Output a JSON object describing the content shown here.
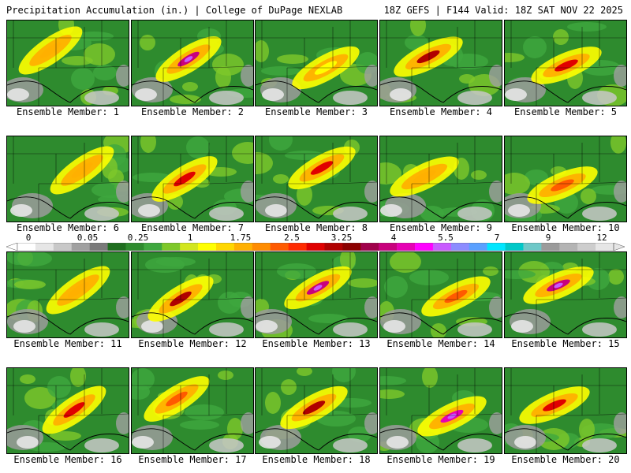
{
  "header": {
    "left_title": "Precipitation Accumulation (in.) | College of DuPage NEXLAB",
    "right_title": "18Z GEFS | F144 Valid: 18Z SAT NOV 22 2025"
  },
  "label_prefix": "Ensemble Member: ",
  "members": [
    {
      "label": "Ensemble Member: 1",
      "max_in": 1.75
    },
    {
      "label": "Ensemble Member: 2",
      "max_in": 5.5
    },
    {
      "label": "Ensemble Member: 3",
      "max_in": 1
    },
    {
      "label": "Ensemble Member: 4",
      "max_in": 4
    },
    {
      "label": "Ensemble Member: 5",
      "max_in": 3.25
    },
    {
      "label": "Ensemble Member: 6",
      "max_in": 1.75
    },
    {
      "label": "Ensemble Member: 7",
      "max_in": 3.25
    },
    {
      "label": "Ensemble Member: 8",
      "max_in": 3.25
    },
    {
      "label": "Ensemble Member: 9",
      "max_in": 1.75
    },
    {
      "label": "Ensemble Member: 10",
      "max_in": 2.5
    },
    {
      "label": "Ensemble Member: 11",
      "max_in": 1.75
    },
    {
      "label": "Ensemble Member: 12",
      "max_in": 4
    },
    {
      "label": "Ensemble Member: 13",
      "max_in": 5.5
    },
    {
      "label": "Ensemble Member: 14",
      "max_in": 2.5
    },
    {
      "label": "Ensemble Member: 15",
      "max_in": 5.5
    },
    {
      "label": "Ensemble Member: 16",
      "max_in": 3.25
    },
    {
      "label": "Ensemble Member: 17",
      "max_in": 2.5
    },
    {
      "label": "Ensemble Member: 18",
      "max_in": 4
    },
    {
      "label": "Ensemble Member: 19",
      "max_in": 7
    },
    {
      "label": "Ensemble Member: 20",
      "max_in": 3.25
    }
  ],
  "colorbar": {
    "tick_labels": [
      "0",
      "0.05",
      "0.25",
      "1",
      "1.75",
      "2.5",
      "3.25",
      "4",
      "5.5",
      "7",
      "9",
      "12"
    ],
    "colors": [
      "#ffffff",
      "#e6e6e6",
      "#c8c8c8",
      "#a0a0a0",
      "#7a7a7a",
      "#1f6e1f",
      "#2e8b2e",
      "#3fa83f",
      "#7ec82a",
      "#d2e61e",
      "#ffff00",
      "#ffd700",
      "#ffb000",
      "#ff8c00",
      "#ff5a00",
      "#ff2a00",
      "#e00000",
      "#b00000",
      "#8b0000",
      "#a0004b",
      "#c8007d",
      "#e600b4",
      "#ff00ff",
      "#c85aff",
      "#8c8cff",
      "#5aa0ff",
      "#00e6ff",
      "#00c8c8",
      "#6ec8c8",
      "#9b9b9b",
      "#b4b4b4",
      "#cdcdcd",
      "#e6e6e6"
    ]
  }
}
